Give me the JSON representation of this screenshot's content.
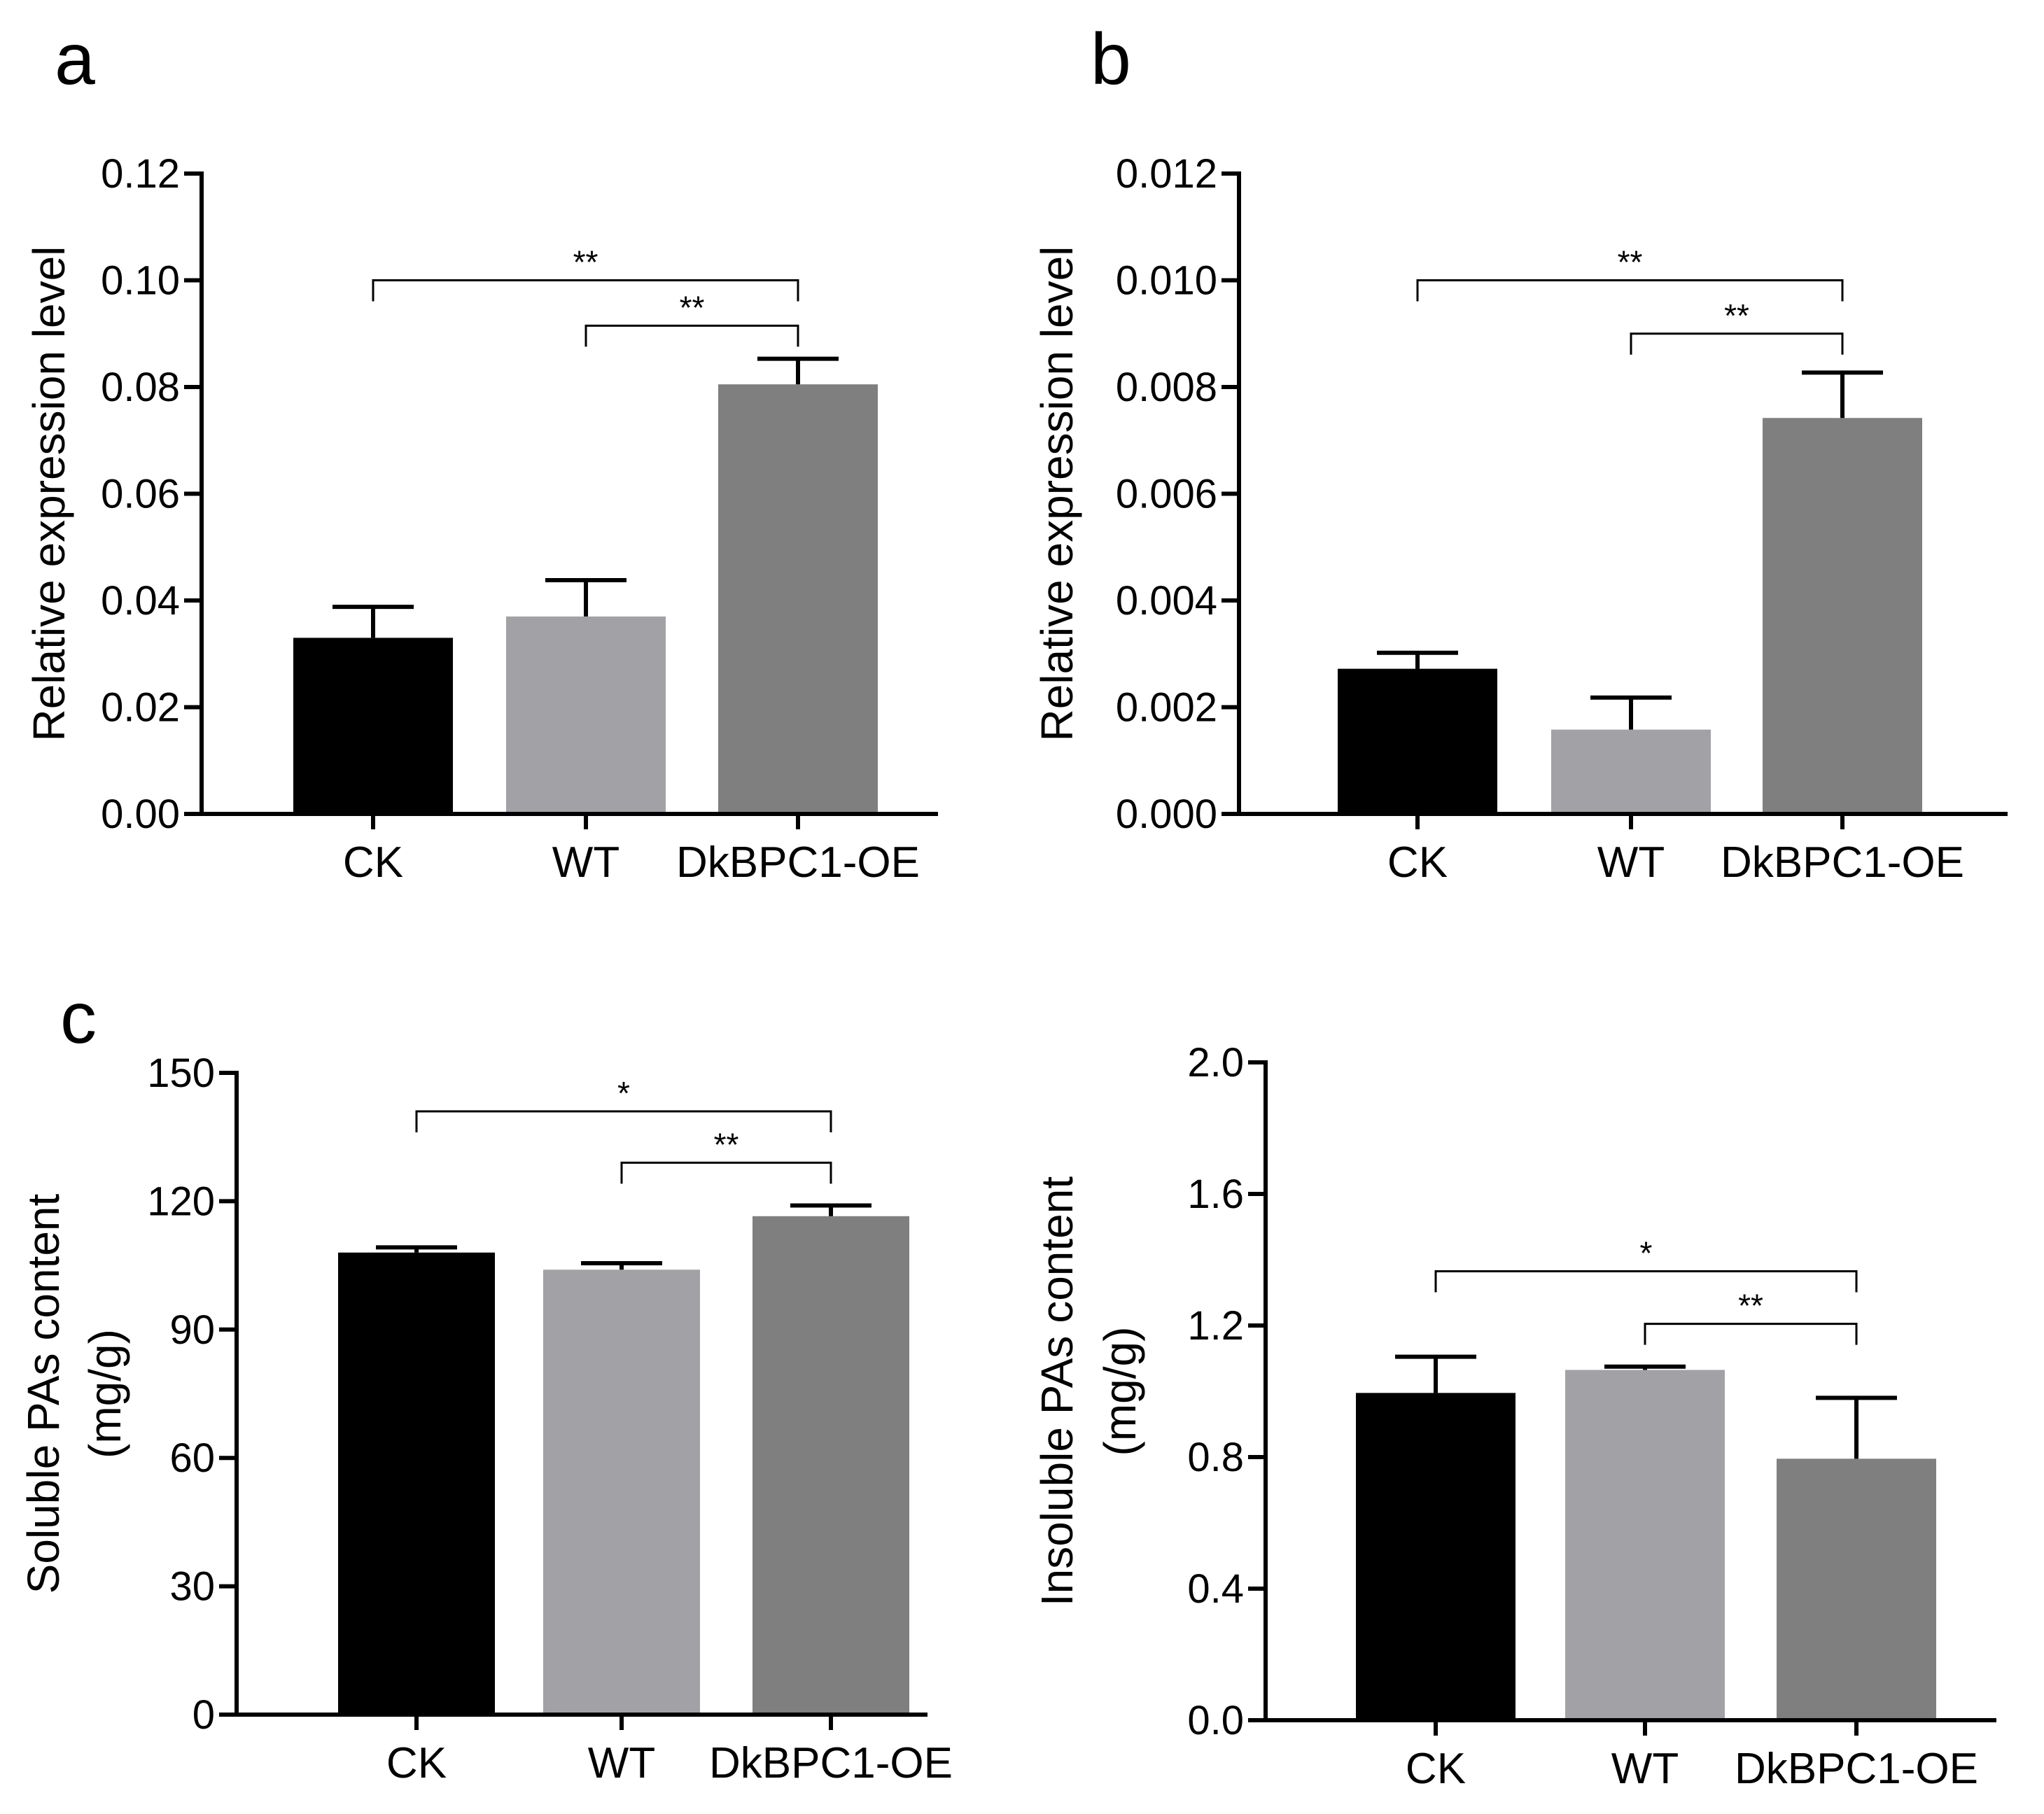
{
  "figure": {
    "panel_letters": [
      "a",
      "b",
      "c"
    ]
  },
  "colors": {
    "CK": "#000000",
    "WT": "#a2a2a6",
    "DkBPC1-OE": "#7f7f7f",
    "axis": "#000000"
  },
  "chart_data": [
    {
      "id": "a",
      "panel": "a",
      "type": "bar",
      "categories": [
        "CK",
        "WT",
        "DkBPC1-OE"
      ],
      "values": [
        0.033,
        0.037,
        0.0805
      ],
      "errors": [
        0.0058,
        0.0068,
        0.0048
      ],
      "ylabel": [
        "Relative expression level"
      ],
      "ylim": [
        0,
        0.12
      ],
      "yticks": [
        "0.00",
        "0.02",
        "0.04",
        "0.06",
        "0.08",
        "0.10",
        "0.12"
      ],
      "significance": [
        {
          "from": 0,
          "to": 2,
          "label": "**",
          "level": 0.1
        },
        {
          "from": 1,
          "to": 2,
          "label": "**",
          "level": 0.0915
        }
      ]
    },
    {
      "id": "b",
      "panel": "b",
      "type": "bar",
      "categories": [
        "CK",
        "WT",
        "DkBPC1-OE"
      ],
      "values": [
        0.00272,
        0.00158,
        0.00742
      ],
      "errors": [
        0.0003,
        0.0006,
        0.00085
      ],
      "ylabel": [
        "Relative expression level"
      ],
      "ylim": [
        0,
        0.012
      ],
      "yticks": [
        "0.000",
        "0.002",
        "0.004",
        "0.006",
        "0.008",
        "0.010",
        "0.012"
      ],
      "significance": [
        {
          "from": 0,
          "to": 2,
          "label": "**",
          "level": 0.01
        },
        {
          "from": 1,
          "to": 2,
          "label": "**",
          "level": 0.009
        }
      ]
    },
    {
      "id": "c1",
      "panel": "c",
      "type": "bar",
      "categories": [
        "CK",
        "WT",
        "DkBPC1-OE"
      ],
      "values": [
        108,
        104,
        116.5
      ],
      "errors": [
        1.2,
        1.5,
        2.5
      ],
      "ylabel": [
        "Soluble PAs content",
        "(mg/g)"
      ],
      "ylim": [
        0,
        150
      ],
      "yticks": [
        "0",
        "30",
        "60",
        "90",
        "120",
        "150"
      ],
      "significance": [
        {
          "from": 0,
          "to": 2,
          "label": "*",
          "level": 141
        },
        {
          "from": 1,
          "to": 2,
          "label": "**",
          "level": 129
        }
      ]
    },
    {
      "id": "c2",
      "panel": "",
      "type": "bar",
      "categories": [
        "CK",
        "WT",
        "DkBPC1-OE"
      ],
      "values": [
        0.995,
        1.065,
        0.795
      ],
      "errors": [
        0.11,
        0.01,
        0.185
      ],
      "ylabel": [
        "Insoluble PAs content",
        "(mg/g)"
      ],
      "ylim": [
        0,
        2.0
      ],
      "yticks": [
        "0.0",
        "0.4",
        "0.8",
        "1.2",
        "1.6",
        "2.0"
      ],
      "significance": [
        {
          "from": 0,
          "to": 2,
          "label": "*",
          "level": 1.365
        },
        {
          "from": 1,
          "to": 2,
          "label": "**",
          "level": 1.205
        }
      ]
    }
  ]
}
